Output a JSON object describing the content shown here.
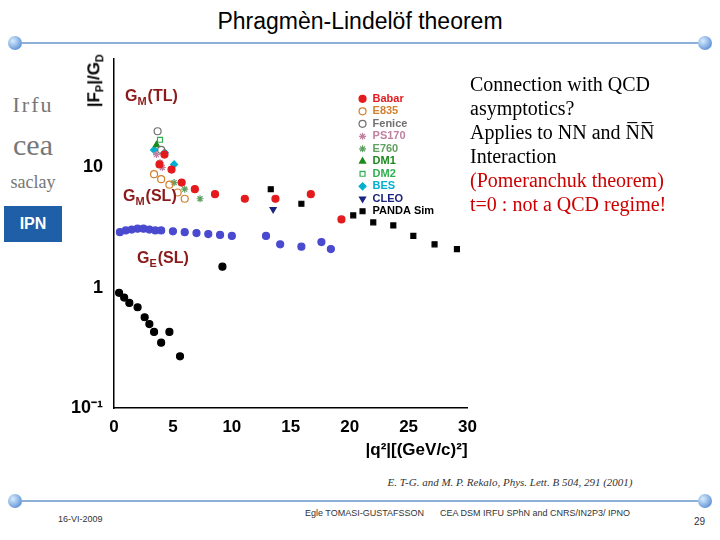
{
  "chart_data": {
    "type": "scatter",
    "y_label": "|FP|/GD",
    "x_label": "|q²|[(GeV/c)²]",
    "log": "y",
    "grid": false,
    "legend": "top-right",
    "xlim": [
      0,
      30
    ],
    "xticks": [
      0,
      5,
      10,
      15,
      20,
      25,
      30
    ],
    "ylim": [
      0.1,
      80
    ],
    "yticks": [
      {
        "value": 0.1,
        "label": "10⁻¹"
      },
      1,
      10
    ],
    "annotations": [
      "GM(TL)",
      "GM(SL)",
      "GE(SL)"
    ],
    "series": [
      {
        "name": "Babar",
        "color": "#e41a1c",
        "marker": "circle",
        "x": [
          3.86,
          4.28,
          4.88,
          5.74,
          6.86,
          8.57,
          11.1,
          13.7,
          16.7,
          19.3
        ],
        "values": [
          10.6,
          12.8,
          9.6,
          7.5,
          6.6,
          6.0,
          5.5,
          5.5,
          6.0,
          3.7
        ]
      },
      {
        "name": "E835",
        "color": "#d08030",
        "marker": "open_circle",
        "x": [
          3.4,
          4.0,
          4.7,
          5.4,
          6.0
        ],
        "values": [
          8.8,
          8.0,
          7.2,
          6.2,
          5.5
        ]
      },
      {
        "name": "Fenice",
        "color": "#707070",
        "marker": "open_circle",
        "x": [
          3.7,
          4.0
        ],
        "values": [
          20,
          14
        ]
      },
      {
        "name": "PS170",
        "color": "#c080a0",
        "marker": "star",
        "x": [
          3.6,
          3.9,
          4.1
        ],
        "values": [
          12.8,
          11,
          10
        ]
      },
      {
        "name": "E760",
        "color": "#60a060",
        "marker": "star",
        "x": [
          5.1,
          6.0,
          7.3
        ],
        "values": [
          7.5,
          6.6,
          5.5
        ]
      },
      {
        "name": "DM1",
        "color": "#1a8a1a",
        "marker": "triangle",
        "x": [
          3.6
        ],
        "values": [
          15.4
        ]
      },
      {
        "name": "DM2",
        "color": "#30b050",
        "marker": "open_square",
        "x": [
          3.9
        ],
        "values": [
          17
        ]
      },
      {
        "name": "BES",
        "color": "#00b0d0",
        "marker": "diamond",
        "x": [
          3.4,
          4.3,
          5.1
        ],
        "values": [
          14,
          13.3,
          10.6
        ]
      },
      {
        "name": "CLEO",
        "color": "#1a237e",
        "marker": "triangle_down",
        "x": [
          13.5
        ],
        "values": [
          4.5
        ]
      },
      {
        "name": "PANDA Sim",
        "color": "#000000",
        "marker": "square",
        "x": [
          13.3,
          15.9,
          20.3,
          22.0,
          23.7,
          25.4,
          27.2,
          29.1
        ],
        "values": [
          6.6,
          5.0,
          4.0,
          3.5,
          3.3,
          2.7,
          2.3,
          2.1
        ]
      },
      {
        "name": "GM(SL)",
        "color": "#4a4ad0",
        "marker": "circle",
        "x": [
          0.5,
          1,
          1.5,
          2,
          2.5,
          3,
          3.5,
          4,
          5,
          6,
          7,
          8,
          9,
          10,
          12.9,
          14.1,
          15.9,
          17.6,
          18.4
        ],
        "values": [
          2.9,
          3.0,
          3.05,
          3.1,
          3.1,
          3.05,
          3.0,
          3.0,
          2.95,
          2.9,
          2.85,
          2.8,
          2.75,
          2.7,
          2.7,
          2.3,
          2.2,
          2.4,
          2.1
        ]
      },
      {
        "name": "GE(SL)",
        "color": "#000000",
        "marker": "circle",
        "x": [
          0.43,
          0.86,
          1.3,
          2.0,
          2.6,
          3.0,
          3.4,
          4.0,
          4.7,
          5.6,
          9.2
        ],
        "values": [
          0.91,
          0.83,
          0.75,
          0.69,
          0.57,
          0.5,
          0.43,
          0.35,
          0.43,
          0.27,
          1.5
        ]
      }
    ]
  },
  "slide": {
    "title": "Phragmèn-Lindelöf theorem",
    "logos": [
      "Irfu",
      "cea",
      "saclay",
      "IPN"
    ],
    "notes": [
      {
        "text": "Connection  with QCD",
        "color": "#000000"
      },
      {
        "text": "asymptotics?",
        "color": "#000000"
      },
      {
        "text": "Applies to NN and N̅N̅",
        "color": "#000000"
      },
      {
        "text": "Interaction",
        "color": "#000000"
      },
      {
        "text": "(Pomeranchuk  theorem)",
        "color": "#cc0000"
      },
      {
        "text": "t=0  : not a QCD regime!",
        "color": "#cc0000"
      }
    ],
    "citation": "E. T-G. and M. P. Rekalo, Phys. Lett. B 504, 291 (2001)",
    "date": "16-VI-2009",
    "author": "Egle TOMASI-GUSTAFSSON",
    "affiliation": "CEA DSM IRFU SPhN and  CNRS/IN2P3/ IPNO",
    "page": "29"
  }
}
